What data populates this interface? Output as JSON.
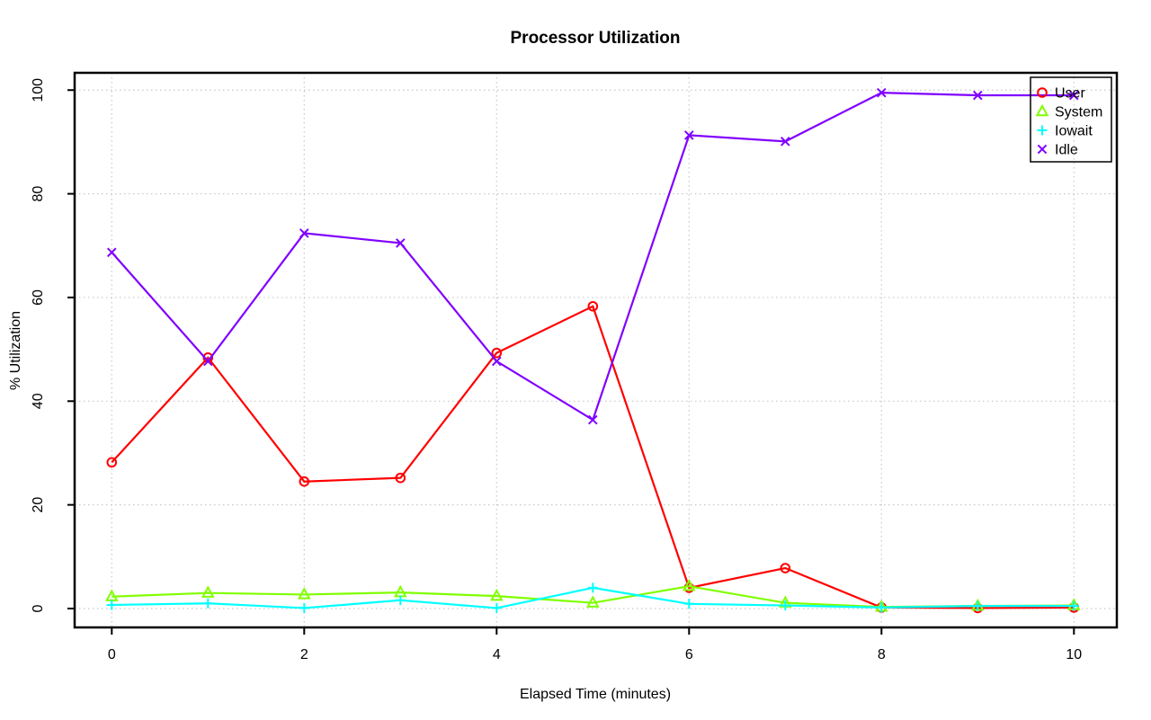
{
  "page": {
    "background_color": "#ffffff",
    "axis_color": "#000000",
    "grid_color": "#c8c8c8"
  },
  "chart_data": {
    "type": "line",
    "title": "Processor Utilization",
    "xlabel": "Elapsed Time (minutes)",
    "ylabel": "% Utilization",
    "x": [
      0,
      1,
      2,
      3,
      4,
      5,
      6,
      7,
      8,
      9,
      10
    ],
    "xlim": [
      0,
      10
    ],
    "ylim": [
      0,
      100
    ],
    "xticks": [
      0,
      2,
      4,
      6,
      8,
      10
    ],
    "yticks": [
      0,
      20,
      40,
      60,
      80,
      100
    ],
    "grid": "dotted gray at tick positions, both axes",
    "legend": {
      "position": "top-right",
      "border": true,
      "background": "transparent"
    },
    "series": [
      {
        "name": "User",
        "color": "#FF0000",
        "marker": "circle",
        "values": [
          28.2,
          48.4,
          24.5,
          25.2,
          49.3,
          58.3,
          4.0,
          7.8,
          0.2,
          0.1,
          0.2
        ]
      },
      {
        "name": "System",
        "color": "#80FF00",
        "marker": "triangle",
        "values": [
          2.3,
          3.0,
          2.7,
          3.1,
          2.4,
          1.1,
          4.3,
          1.1,
          0.3,
          0.5,
          0.6
        ]
      },
      {
        "name": "Iowait",
        "color": "#00FFFF",
        "marker": "plus",
        "values": [
          0.7,
          1.0,
          0.1,
          1.6,
          0.1,
          4.0,
          0.9,
          0.6,
          0.2,
          0.5,
          0.5
        ]
      },
      {
        "name": "Idle",
        "color": "#8000FF",
        "marker": "x",
        "values": [
          68.7,
          47.7,
          72.4,
          70.5,
          47.7,
          36.4,
          91.3,
          90.1,
          99.5,
          99.0,
          99.0
        ]
      }
    ]
  }
}
